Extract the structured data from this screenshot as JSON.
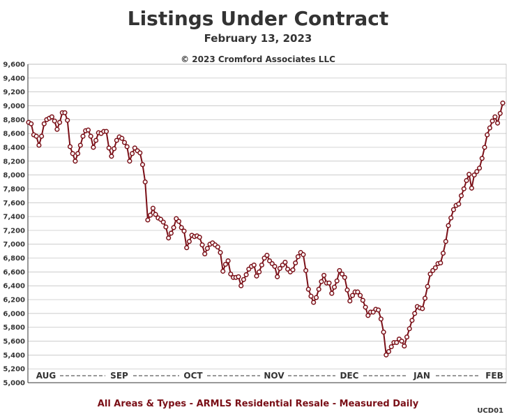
{
  "header": {
    "title": "Listings Under Contract",
    "subtitle": "February 13, 2023",
    "copyright": "© 2023 Cromford Associates LLC"
  },
  "footer": {
    "caption": "All Areas & Types - ARMLS Residential Resale - Measured Daily",
    "code": "UCD01"
  },
  "colors": {
    "line": "#7a0f17",
    "marker_fill": "#ffffff",
    "grid": "#bbbbbb",
    "axis": "#333333"
  },
  "chart_data": {
    "type": "line",
    "title": "Listings Under Contract",
    "ylim": [
      5000,
      9600
    ],
    "yticks": [
      5000,
      5200,
      5400,
      5600,
      5800,
      6000,
      6200,
      6400,
      6600,
      6800,
      7000,
      7200,
      7400,
      7600,
      7800,
      8000,
      8200,
      8400,
      8600,
      8800,
      9000,
      9200,
      9400,
      9600
    ],
    "ytick_labels": [
      "5,000",
      "5,200",
      "5,400",
      "5,600",
      "5,800",
      "6,000",
      "6,200",
      "6,400",
      "6,600",
      "6,800",
      "7,000",
      "7,200",
      "7,400",
      "7,600",
      "7,800",
      "8,000",
      "8,200",
      "8,400",
      "8,600",
      "8,800",
      "9,000",
      "9,200",
      "9,400",
      "9,600"
    ],
    "xtick_labels": [
      "AUG",
      "SEP",
      "OCT",
      "NOV",
      "DEC",
      "JAN",
      "FEB"
    ],
    "grid": true,
    "series": [
      {
        "values": [
          8760,
          8740,
          8580,
          8560,
          8430,
          8560,
          8740,
          8800,
          8820,
          8840,
          8780,
          8660,
          8760,
          8900,
          8900,
          8790,
          8410,
          8310,
          8200,
          8310,
          8430,
          8560,
          8640,
          8650,
          8560,
          8400,
          8500,
          8610,
          8600,
          8630,
          8630,
          8390,
          8270,
          8380,
          8500,
          8550,
          8530,
          8470,
          8410,
          8200,
          8310,
          8390,
          8350,
          8320,
          8150,
          7900,
          7350,
          7420,
          7520,
          7430,
          7380,
          7360,
          7320,
          7250,
          7090,
          7160,
          7240,
          7370,
          7330,
          7240,
          7190,
          6950,
          7040,
          7130,
          7110,
          7120,
          7100,
          6990,
          6860,
          6940,
          7000,
          7020,
          6990,
          6960,
          6880,
          6610,
          6710,
          6760,
          6570,
          6520,
          6520,
          6530,
          6400,
          6490,
          6560,
          6640,
          6680,
          6700,
          6540,
          6600,
          6700,
          6800,
          6840,
          6760,
          6720,
          6680,
          6530,
          6650,
          6700,
          6740,
          6640,
          6600,
          6630,
          6730,
          6820,
          6880,
          6850,
          6620,
          6350,
          6250,
          6160,
          6230,
          6350,
          6460,
          6550,
          6440,
          6440,
          6290,
          6380,
          6470,
          6620,
          6570,
          6520,
          6340,
          6180,
          6260,
          6310,
          6310,
          6260,
          6190,
          6090,
          5970,
          6020,
          6020,
          6060,
          6050,
          5920,
          5730,
          5400,
          5450,
          5520,
          5580,
          5580,
          5630,
          5600,
          5530,
          5660,
          5780,
          5900,
          6000,
          6100,
          6080,
          6070,
          6220,
          6390,
          6570,
          6620,
          6660,
          6720,
          6730,
          6870,
          7040,
          7270,
          7380,
          7500,
          7560,
          7580,
          7700,
          7800,
          7920,
          8010,
          7810,
          8000,
          8050,
          8100,
          8240,
          8400,
          8580,
          8680,
          8780,
          8840,
          8750,
          8890,
          9040
        ]
      }
    ]
  }
}
